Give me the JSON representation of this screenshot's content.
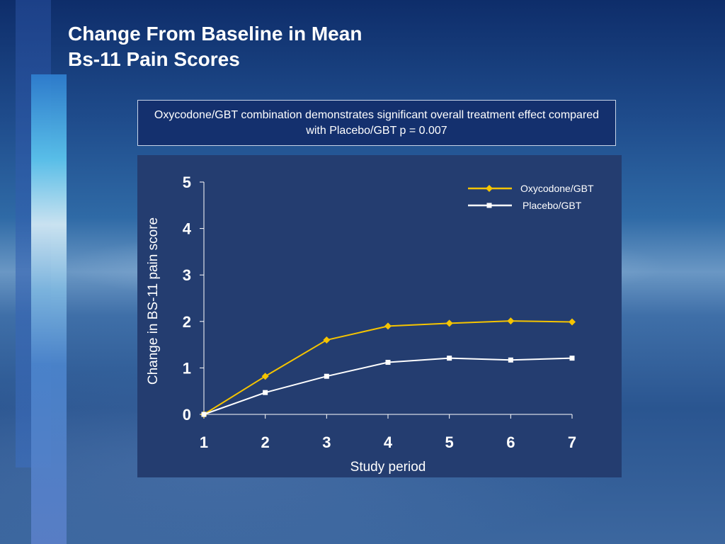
{
  "slide": {
    "title_line1": "Change From Baseline in Mean",
    "title_line2": "Bs-11 Pain Scores",
    "note": "Oxycodone/GBT combination demonstrates significant overall treatment effect compared with Placebo/GBT p = 0.007"
  },
  "colors": {
    "oxycodone": "#f5c400",
    "placebo": "#ffffff"
  },
  "chart_data": {
    "type": "line",
    "title": "",
    "xlabel": "Study period",
    "ylabel": "Change in BS-11 pain score",
    "x": [
      1,
      2,
      3,
      4,
      5,
      6,
      7
    ],
    "ylim": [
      0,
      5
    ],
    "yticks": [
      0,
      1,
      2,
      3,
      4,
      5
    ],
    "grid": false,
    "legend": "top-right",
    "series": [
      {
        "name": "Oxycodone/GBT",
        "marker": "diamond",
        "values": [
          0.0,
          0.82,
          1.6,
          1.9,
          1.96,
          2.01,
          1.99
        ]
      },
      {
        "name": "Placebo/GBT",
        "marker": "square",
        "values": [
          0.0,
          0.47,
          0.82,
          1.12,
          1.21,
          1.17,
          1.21
        ]
      }
    ]
  }
}
